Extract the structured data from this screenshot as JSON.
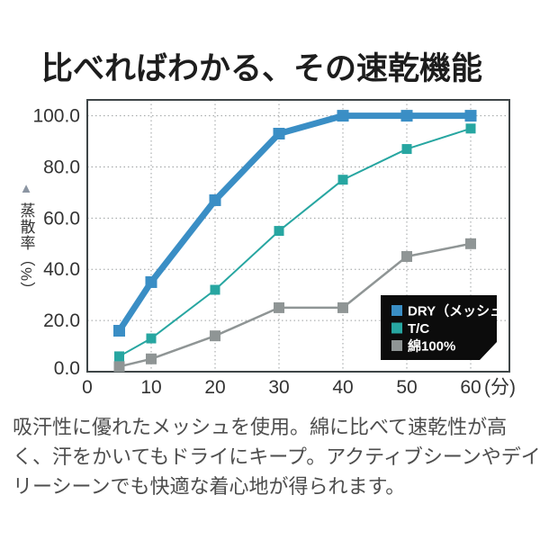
{
  "title": "比べればわかる、その速乾機能",
  "description": {
    "lines": [
      "吸汗性に優れたメッシュを使用。綿に比べて速乾性が高",
      "く、汗をかいてもドライにキープ。アクティブシーンやデイ",
      "リーシーンでも快適な着心地が得られます。"
    ]
  },
  "chart_data": {
    "type": "line",
    "title": "",
    "xlabel": "(分)",
    "ylabel": "蒸散率（%）",
    "ylabel_marker": "▲",
    "x": [
      5,
      10,
      20,
      30,
      40,
      50,
      60
    ],
    "series": [
      {
        "name": "DRY（メッシュ）",
        "values": [
          16,
          35,
          67,
          93,
          100,
          100,
          100
        ],
        "color": "#3a8ec5",
        "line_width": 7,
        "marker_size": 13
      },
      {
        "name": "T/C",
        "values": [
          6,
          13,
          32,
          55,
          75,
          87,
          95
        ],
        "color": "#27a6a1",
        "line_width": 2,
        "marker_size": 11
      },
      {
        "name": "綿100%",
        "values": [
          2,
          5,
          14,
          25,
          25,
          45,
          50
        ],
        "color": "#8f9595",
        "line_width": 2.5,
        "marker_size": 12
      }
    ],
    "xticks": [
      0,
      10,
      20,
      30,
      40,
      50,
      60
    ],
    "xtick_labels": [
      "0",
      "10",
      "20",
      "30",
      "40",
      "50",
      "60(分)"
    ],
    "yticks": [
      0,
      20,
      40,
      60,
      80,
      100
    ],
    "ytick_labels": [
      "0.0",
      "20.0",
      "40.0",
      "60.0",
      "80.0",
      "100.0"
    ],
    "xlim": [
      0,
      66
    ],
    "ylim": [
      0,
      106
    ],
    "grid": "dotted",
    "legend": {
      "position": "bottom-right",
      "background": "#0c0c0c",
      "text_color": "#ffffff",
      "entries": [
        "DRY（メッシュ）",
        "T/C",
        "綿100%"
      ]
    },
    "colors": {
      "axis": "#3e4547",
      "grid": "#9b9fa0",
      "tick_text": "#333333"
    }
  }
}
